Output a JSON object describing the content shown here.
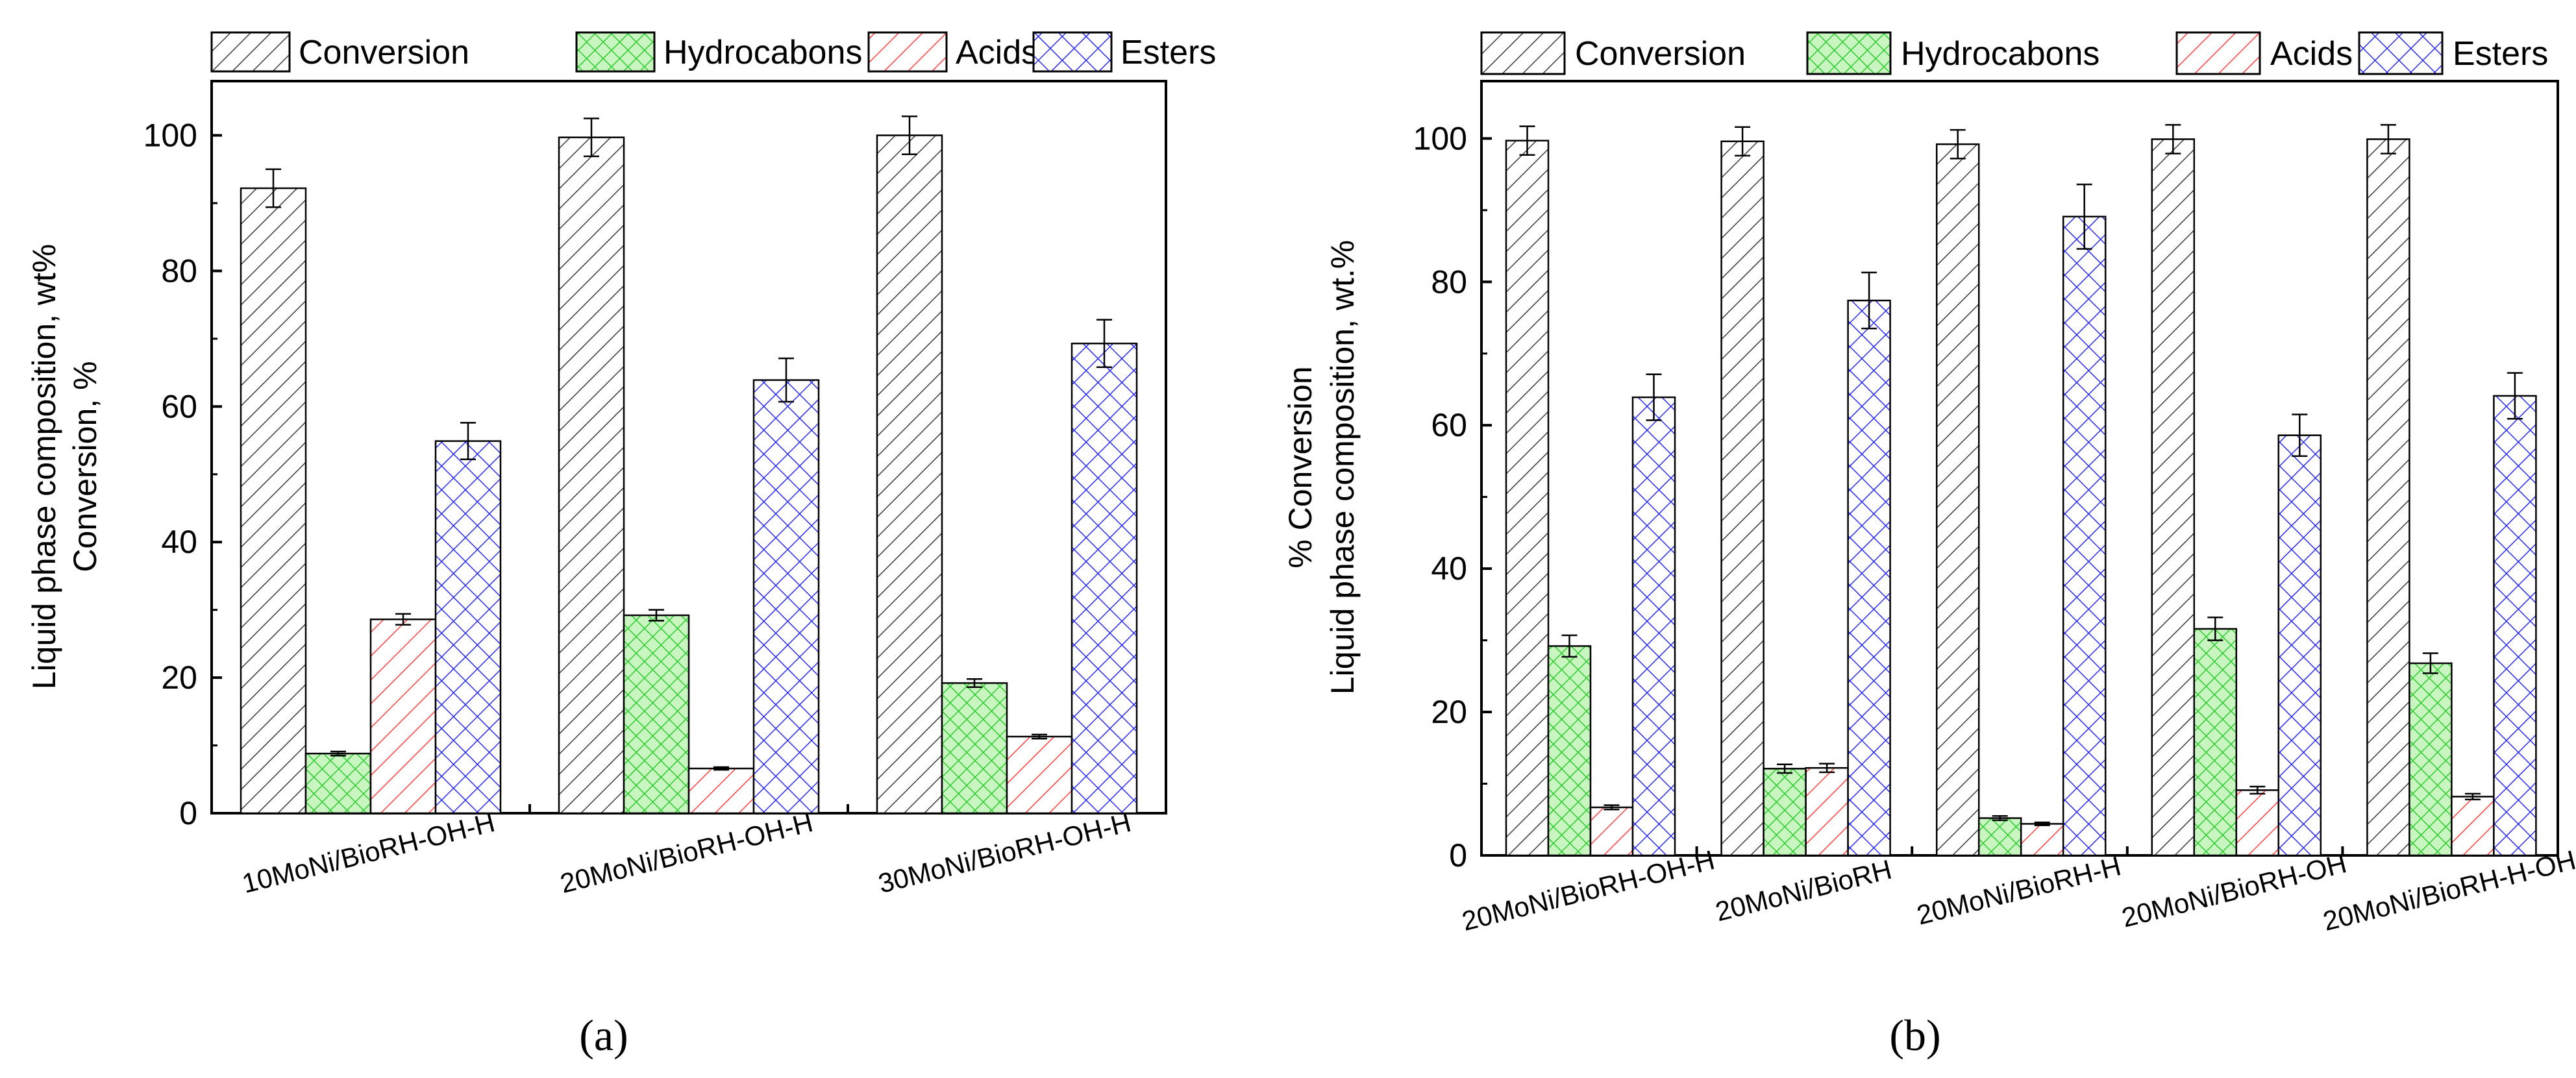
{
  "legend": [
    {
      "label": "Conversion",
      "pattern": "diag-right",
      "fill": "#ffffff",
      "stroke": "#3a3a3a"
    },
    {
      "label": "Hydrocabons",
      "pattern": "crosshatch",
      "fill": "#c8f5c0",
      "stroke": "#2ecc30"
    },
    {
      "label": "Acids",
      "pattern": "diag-right",
      "fill": "#ffffff",
      "stroke": "#ff4040"
    },
    {
      "label": "Esters",
      "pattern": "crosshatch",
      "fill": "#ffffff",
      "stroke": "#2a2aee"
    }
  ],
  "chart_data": [
    {
      "type": "bar",
      "caption": "(a)",
      "categories": [
        "10MoNi/BioRH-OH-H",
        "20MoNi/BioRH-OH-H",
        "30MoNi/BioRH-OH-H"
      ],
      "series": [
        {
          "name": "Conversion",
          "values": [
            92.2,
            99.7,
            100.0
          ],
          "errors": [
            2.8,
            2.8,
            2.8
          ]
        },
        {
          "name": "Hydrocabons",
          "values": [
            8.8,
            29.2,
            19.2
          ],
          "errors": [
            0.3,
            0.8,
            0.6
          ]
        },
        {
          "name": "Acids",
          "values": [
            28.6,
            6.6,
            11.3
          ],
          "errors": [
            0.8,
            0.2,
            0.3
          ]
        },
        {
          "name": "Esters",
          "values": [
            54.9,
            63.9,
            69.3
          ],
          "errors": [
            2.7,
            3.2,
            3.5
          ]
        }
      ],
      "ylabel_lines": [
        "Liquid phase composition, wt%",
        "Conversion, %"
      ],
      "ylim": [
        0,
        108
      ],
      "yticks": [
        0,
        20,
        40,
        60,
        80,
        100
      ]
    },
    {
      "type": "bar",
      "caption": "(b)",
      "categories": [
        "20MoNi/BioRH-OH-H",
        "20MoNi/BioRH",
        "20MoNi/BioRH-H",
        "20MoNi/BioRH-OH",
        "20MoNi/BioRH-H-OH"
      ],
      "series": [
        {
          "name": "Conversion",
          "values": [
            99.7,
            99.6,
            99.2,
            99.9,
            99.9
          ],
          "errors": [
            2.0,
            2.0,
            2.0,
            2.0,
            2.0
          ]
        },
        {
          "name": "Hydrocabons",
          "values": [
            29.2,
            12.1,
            5.2,
            31.6,
            26.8
          ],
          "errors": [
            1.5,
            0.6,
            0.3,
            1.6,
            1.4
          ]
        },
        {
          "name": "Acids",
          "values": [
            6.7,
            12.2,
            4.4,
            9.1,
            8.2
          ],
          "errors": [
            0.3,
            0.6,
            0.2,
            0.5,
            0.4
          ]
        },
        {
          "name": "Esters",
          "values": [
            63.9,
            77.4,
            89.1,
            58.6,
            64.1
          ],
          "errors": [
            3.2,
            3.9,
            4.5,
            2.9,
            3.2
          ]
        }
      ],
      "ylabel_lines": [
        "% Conversion",
        "Liquid phase composition, wt.%"
      ],
      "ylim": [
        0,
        108
      ],
      "yticks": [
        0,
        20,
        40,
        60,
        80,
        100
      ]
    }
  ]
}
